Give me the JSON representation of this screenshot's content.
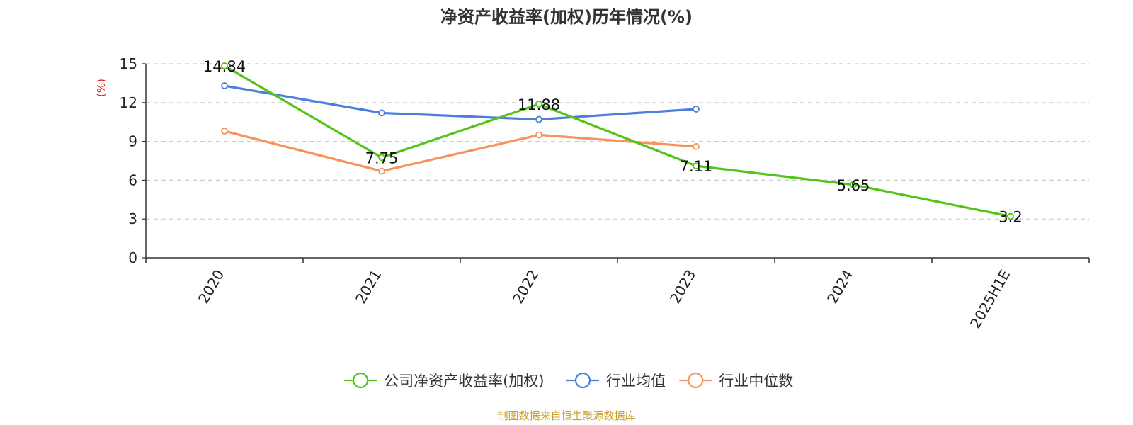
{
  "chart_data": {
    "type": "line",
    "title": "净资产收益率(加权)历年情况(%)",
    "y_unit": "(%)",
    "categories": [
      "2020",
      "2021",
      "2022",
      "2023",
      "2024",
      "2025H1E"
    ],
    "ylim": [
      0,
      15
    ],
    "yticks": [
      "0",
      "3",
      "6",
      "9",
      "12",
      "15"
    ],
    "grid": true,
    "legend_position": "bottom",
    "series": [
      {
        "name": "公司净资产收益率(加权)",
        "color": "#52c41a",
        "values": [
          14.84,
          7.75,
          11.88,
          7.11,
          5.65,
          3.2
        ],
        "labels": [
          "14.84",
          "7.75",
          "11.88",
          "7.11",
          "5.65",
          "3.2"
        ]
      },
      {
        "name": "行业均值",
        "color": "#4a7fdc",
        "values": [
          13.3,
          11.2,
          10.7,
          11.5,
          null,
          null
        ]
      },
      {
        "name": "行业中位数",
        "color": "#f7925c",
        "values": [
          9.8,
          6.7,
          9.5,
          8.6,
          null,
          null
        ]
      }
    ]
  },
  "colors": {
    "unit": "#e02020",
    "source": "#c8a02c",
    "axis": "#333333",
    "grid": "#cccccc"
  },
  "source_text": "制图数据来自恒生聚源数据库"
}
